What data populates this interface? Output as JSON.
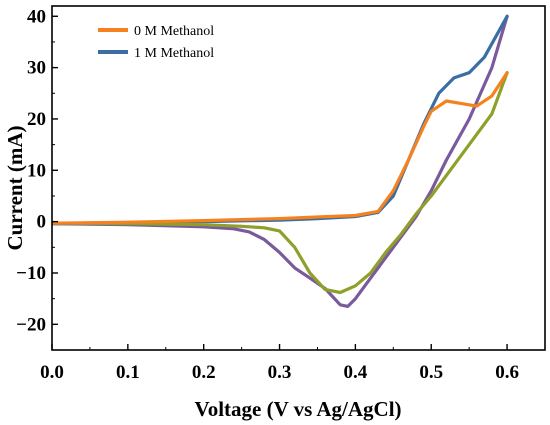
{
  "chart_data": {
    "type": "line",
    "xlabel": "Voltage (V vs Ag/AgCl)",
    "ylabel": "Current (mA)",
    "xlim": [
      0.0,
      0.65
    ],
    "ylim": [
      -25,
      42
    ],
    "x_ticks": [
      "0.0",
      "0.1",
      "0.2",
      "0.3",
      "0.4",
      "0.5",
      "0.6"
    ],
    "y_ticks": [
      "−20",
      "−10",
      "0",
      "10",
      "20",
      "30",
      "40"
    ],
    "grid": false,
    "legend_position": "top-left",
    "series": [
      {
        "name": "0 M Methanol",
        "color": "#f5821f",
        "reverse_color": "#8fa02a",
        "forward": [
          [
            0.0,
            -0.3
          ],
          [
            0.1,
            -0.1
          ],
          [
            0.2,
            0.2
          ],
          [
            0.3,
            0.6
          ],
          [
            0.35,
            0.9
          ],
          [
            0.4,
            1.2
          ],
          [
            0.43,
            2.0
          ],
          [
            0.45,
            6.0
          ],
          [
            0.47,
            12.0
          ],
          [
            0.49,
            18.5
          ],
          [
            0.5,
            21.5
          ],
          [
            0.52,
            23.5
          ],
          [
            0.54,
            23.0
          ],
          [
            0.56,
            22.5
          ],
          [
            0.58,
            24.5
          ],
          [
            0.6,
            29.0
          ]
        ],
        "reverse": [
          [
            0.6,
            29.0
          ],
          [
            0.58,
            21.0
          ],
          [
            0.55,
            15.0
          ],
          [
            0.52,
            9.0
          ],
          [
            0.5,
            5.0
          ],
          [
            0.48,
            1.5
          ],
          [
            0.46,
            -2.5
          ],
          [
            0.44,
            -6.0
          ],
          [
            0.42,
            -10.0
          ],
          [
            0.4,
            -12.5
          ],
          [
            0.38,
            -13.8
          ],
          [
            0.36,
            -13.2
          ],
          [
            0.34,
            -10.0
          ],
          [
            0.32,
            -5.0
          ],
          [
            0.3,
            -1.8
          ],
          [
            0.28,
            -1.2
          ],
          [
            0.25,
            -0.9
          ],
          [
            0.2,
            -0.6
          ],
          [
            0.1,
            -0.4
          ],
          [
            0.0,
            -0.3
          ]
        ]
      },
      {
        "name": "1 M Methanol",
        "color": "#3a6ea5",
        "reverse_color": "#7a5a9c",
        "forward": [
          [
            0.0,
            -0.4
          ],
          [
            0.1,
            -0.2
          ],
          [
            0.2,
            0.0
          ],
          [
            0.3,
            0.3
          ],
          [
            0.35,
            0.6
          ],
          [
            0.4,
            1.0
          ],
          [
            0.43,
            1.8
          ],
          [
            0.45,
            5.0
          ],
          [
            0.47,
            12.0
          ],
          [
            0.49,
            19.0
          ],
          [
            0.51,
            25.0
          ],
          [
            0.53,
            28.0
          ],
          [
            0.55,
            29.0
          ],
          [
            0.57,
            32.0
          ],
          [
            0.6,
            40.0
          ]
        ],
        "reverse": [
          [
            0.6,
            40.0
          ],
          [
            0.58,
            30.0
          ],
          [
            0.55,
            20.0
          ],
          [
            0.52,
            12.0
          ],
          [
            0.5,
            6.0
          ],
          [
            0.48,
            1.0
          ],
          [
            0.46,
            -3.0
          ],
          [
            0.44,
            -7.0
          ],
          [
            0.42,
            -11.0
          ],
          [
            0.4,
            -15.0
          ],
          [
            0.39,
            -16.5
          ],
          [
            0.38,
            -16.2
          ],
          [
            0.36,
            -13.0
          ],
          [
            0.34,
            -11.0
          ],
          [
            0.32,
            -9.0
          ],
          [
            0.3,
            -6.0
          ],
          [
            0.28,
            -3.5
          ],
          [
            0.26,
            -2.0
          ],
          [
            0.24,
            -1.4
          ],
          [
            0.2,
            -1.0
          ],
          [
            0.1,
            -0.6
          ],
          [
            0.0,
            -0.4
          ]
        ]
      }
    ]
  }
}
